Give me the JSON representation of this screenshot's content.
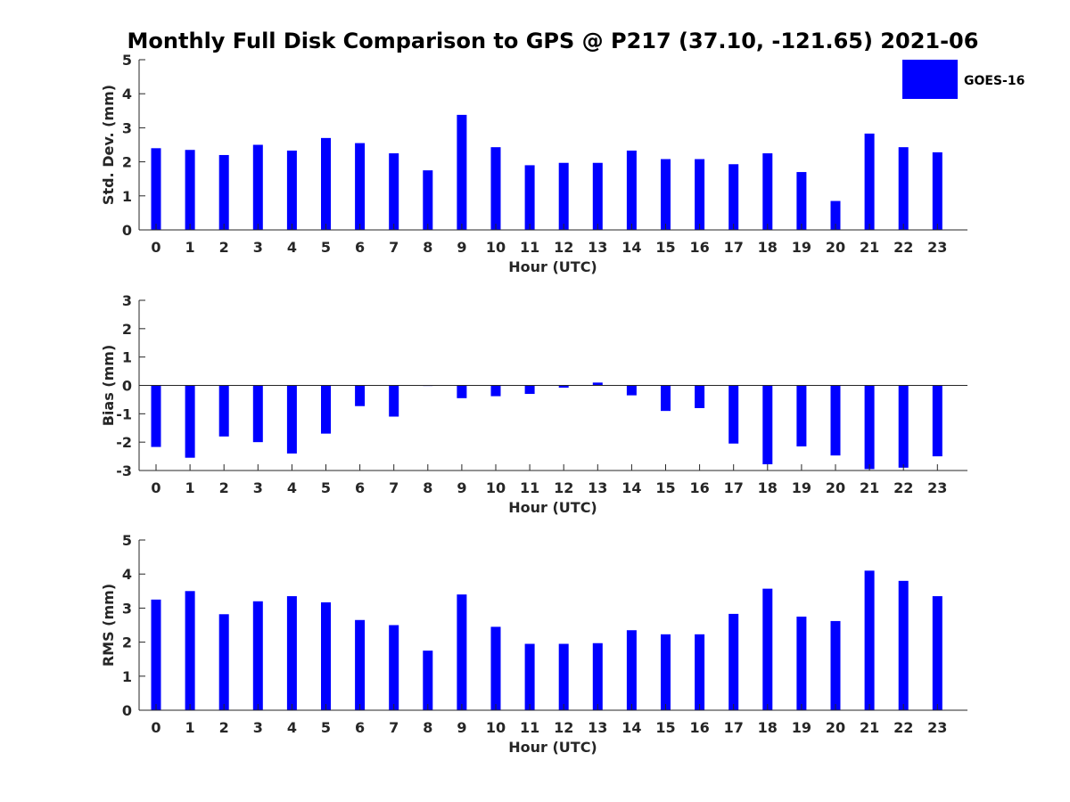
{
  "title": "Monthly Full Disk Comparison to GPS @ P217 (37.10, -121.65) 2021-06",
  "legend": {
    "label": "GOES-16",
    "placement": "top-right",
    "color": "#0000ff"
  },
  "chart_data": [
    {
      "type": "bar",
      "xlabel": "Hour (UTC)",
      "ylabel": "Std. Dev. (mm)",
      "ylim": [
        0,
        5
      ],
      "yticks": [
        0,
        1,
        2,
        3,
        4,
        5
      ],
      "categories": [
        "0",
        "1",
        "2",
        "3",
        "4",
        "5",
        "6",
        "7",
        "8",
        "9",
        "10",
        "11",
        "12",
        "13",
        "14",
        "15",
        "16",
        "17",
        "18",
        "19",
        "20",
        "21",
        "22",
        "23"
      ],
      "series": [
        {
          "name": "GOES-16",
          "color": "#0000ff",
          "values": [
            2.4,
            2.35,
            2.2,
            2.5,
            2.33,
            2.7,
            2.55,
            2.25,
            1.75,
            3.38,
            2.43,
            1.9,
            1.97,
            1.97,
            2.33,
            2.08,
            2.08,
            1.93,
            2.25,
            1.7,
            0.85,
            2.83,
            2.43,
            2.28
          ]
        }
      ],
      "grid": false
    },
    {
      "type": "bar",
      "xlabel": "Hour (UTC)",
      "ylabel": "Bias (mm)",
      "ylim": [
        -3,
        3
      ],
      "yticks": [
        -3,
        -2,
        -1,
        0,
        1,
        2,
        3
      ],
      "categories": [
        "0",
        "1",
        "2",
        "3",
        "4",
        "5",
        "6",
        "7",
        "8",
        "9",
        "10",
        "11",
        "12",
        "13",
        "14",
        "15",
        "16",
        "17",
        "18",
        "19",
        "20",
        "21",
        "22",
        "23"
      ],
      "series": [
        {
          "name": "GOES-16",
          "color": "#0000ff",
          "values": [
            -2.17,
            -2.55,
            -1.8,
            -2.0,
            -2.4,
            -1.7,
            -0.73,
            -1.1,
            -0.02,
            -0.45,
            -0.38,
            -0.3,
            -0.08,
            0.1,
            -0.35,
            -0.9,
            -0.8,
            -2.05,
            -2.78,
            -2.15,
            -2.47,
            -2.95,
            -2.9,
            -2.5
          ]
        }
      ],
      "grid": false
    },
    {
      "type": "bar",
      "xlabel": "Hour (UTC)",
      "ylabel": "RMS (mm)",
      "ylim": [
        0,
        5
      ],
      "yticks": [
        0,
        1,
        2,
        3,
        4,
        5
      ],
      "categories": [
        "0",
        "1",
        "2",
        "3",
        "4",
        "5",
        "6",
        "7",
        "8",
        "9",
        "10",
        "11",
        "12",
        "13",
        "14",
        "15",
        "16",
        "17",
        "18",
        "19",
        "20",
        "21",
        "22",
        "23"
      ],
      "series": [
        {
          "name": "GOES-16",
          "color": "#0000ff",
          "values": [
            3.25,
            3.5,
            2.82,
            3.2,
            3.35,
            3.17,
            2.65,
            2.5,
            1.75,
            3.4,
            2.45,
            1.95,
            1.95,
            1.97,
            2.35,
            2.23,
            2.23,
            2.83,
            3.57,
            2.75,
            2.62,
            4.1,
            3.8,
            3.35
          ]
        }
      ],
      "grid": false
    }
  ]
}
